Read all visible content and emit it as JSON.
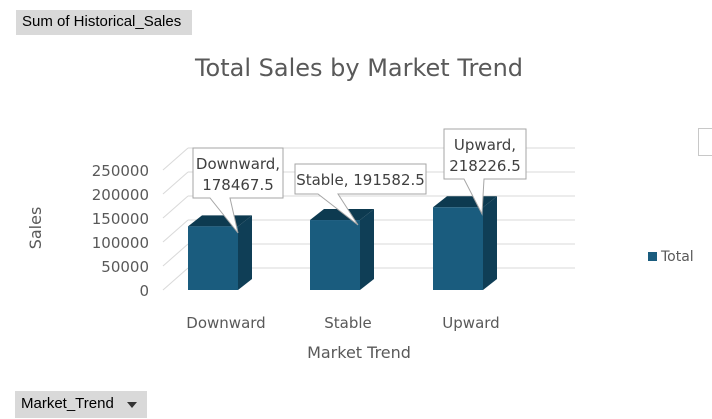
{
  "values_field": {
    "label": "Sum of Historical_Sales"
  },
  "axis_field": {
    "label": "Market_Trend"
  },
  "chart_data": {
    "type": "bar",
    "title": "Total Sales by Market Trend",
    "xlabel": "Market Trend",
    "ylabel": "Sales",
    "categories": [
      "Downward",
      "Stable",
      "Upward"
    ],
    "series": [
      {
        "name": "Total",
        "values": [
          178467.5,
          191582.5,
          218226.5
        ],
        "color": "#1a5c7e"
      }
    ],
    "data_labels": [
      "Downward, 178467.5",
      "Stable, 191582.5",
      "Upward, 218226.5"
    ],
    "y_ticks": [
      "0",
      "50000",
      "100000",
      "150000",
      "200000",
      "250000"
    ],
    "ylim": [
      0,
      250000
    ],
    "grid": true,
    "legend_position": "right",
    "style": "3d-column"
  }
}
